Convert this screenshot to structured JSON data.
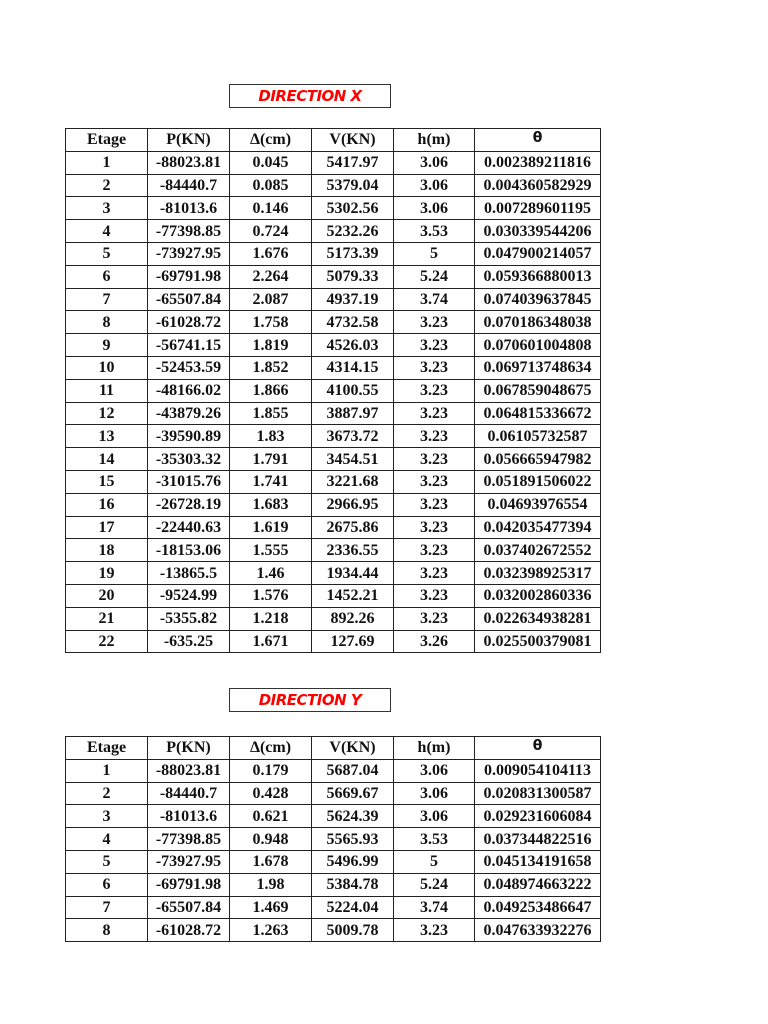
{
  "headers": [
    "Etage",
    "P(KN)",
    "Δ(cm)",
    "V(KN)",
    "h(m)",
    "θ"
  ],
  "direction_x": {
    "title": "DIRECTION X",
    "rows": [
      [
        "1",
        "-88023.81",
        "0.045",
        "5417.97",
        "3.06",
        "0.002389211816"
      ],
      [
        "2",
        "-84440.7",
        "0.085",
        "5379.04",
        "3.06",
        "0.004360582929"
      ],
      [
        "3",
        "-81013.6",
        "0.146",
        "5302.56",
        "3.06",
        "0.007289601195"
      ],
      [
        "4",
        "-77398.85",
        "0.724",
        "5232.26",
        "3.53",
        "0.030339544206"
      ],
      [
        "5",
        "-73927.95",
        "1.676",
        "5173.39",
        "5",
        "0.047900214057"
      ],
      [
        "6",
        "-69791.98",
        "2.264",
        "5079.33",
        "5.24",
        "0.059366880013"
      ],
      [
        "7",
        "-65507.84",
        "2.087",
        "4937.19",
        "3.74",
        "0.074039637845"
      ],
      [
        "8",
        "-61028.72",
        "1.758",
        "4732.58",
        "3.23",
        "0.070186348038"
      ],
      [
        "9",
        "-56741.15",
        "1.819",
        "4526.03",
        "3.23",
        "0.070601004808"
      ],
      [
        "10",
        "-52453.59",
        "1.852",
        "4314.15",
        "3.23",
        "0.069713748634"
      ],
      [
        "11",
        "-48166.02",
        "1.866",
        "4100.55",
        "3.23",
        "0.067859048675"
      ],
      [
        "12",
        "-43879.26",
        "1.855",
        "3887.97",
        "3.23",
        "0.064815336672"
      ],
      [
        "13",
        "-39590.89",
        "1.83",
        "3673.72",
        "3.23",
        "0.06105732587"
      ],
      [
        "14",
        "-35303.32",
        "1.791",
        "3454.51",
        "3.23",
        "0.056665947982"
      ],
      [
        "15",
        "-31015.76",
        "1.741",
        "3221.68",
        "3.23",
        "0.051891506022"
      ],
      [
        "16",
        "-26728.19",
        "1.683",
        "2966.95",
        "3.23",
        "0.04693976554"
      ],
      [
        "17",
        "-22440.63",
        "1.619",
        "2675.86",
        "3.23",
        "0.042035477394"
      ],
      [
        "18",
        "-18153.06",
        "1.555",
        "2336.55",
        "3.23",
        "0.037402672552"
      ],
      [
        "19",
        "-13865.5",
        "1.46",
        "1934.44",
        "3.23",
        "0.032398925317"
      ],
      [
        "20",
        "-9524.99",
        "1.576",
        "1452.21",
        "3.23",
        "0.032002860336"
      ],
      [
        "21",
        "-5355.82",
        "1.218",
        "892.26",
        "3.23",
        "0.022634938281"
      ],
      [
        "22",
        "-635.25",
        "1.671",
        "127.69",
        "3.26",
        "0.025500379081"
      ]
    ]
  },
  "direction_y": {
    "title": "DIRECTION Y",
    "rows": [
      [
        "1",
        "-88023.81",
        "0.179",
        "5687.04",
        "3.06",
        "0.009054104113"
      ],
      [
        "2",
        "-84440.7",
        "0.428",
        "5669.67",
        "3.06",
        "0.020831300587"
      ],
      [
        "3",
        "-81013.6",
        "0.621",
        "5624.39",
        "3.06",
        "0.029231606084"
      ],
      [
        "4",
        "-77398.85",
        "0.948",
        "5565.93",
        "3.53",
        "0.037344822516"
      ],
      [
        "5",
        "-73927.95",
        "1.678",
        "5496.99",
        "5",
        "0.045134191658"
      ],
      [
        "6",
        "-69791.98",
        "1.98",
        "5384.78",
        "5.24",
        "0.048974663222"
      ],
      [
        "7",
        "-65507.84",
        "1.469",
        "5224.04",
        "3.74",
        "0.049253486647"
      ],
      [
        "8",
        "-61028.72",
        "1.263",
        "5009.78",
        "3.23",
        "0.047633932276"
      ]
    ]
  },
  "colors": {
    "title_text": "#ff0000"
  }
}
